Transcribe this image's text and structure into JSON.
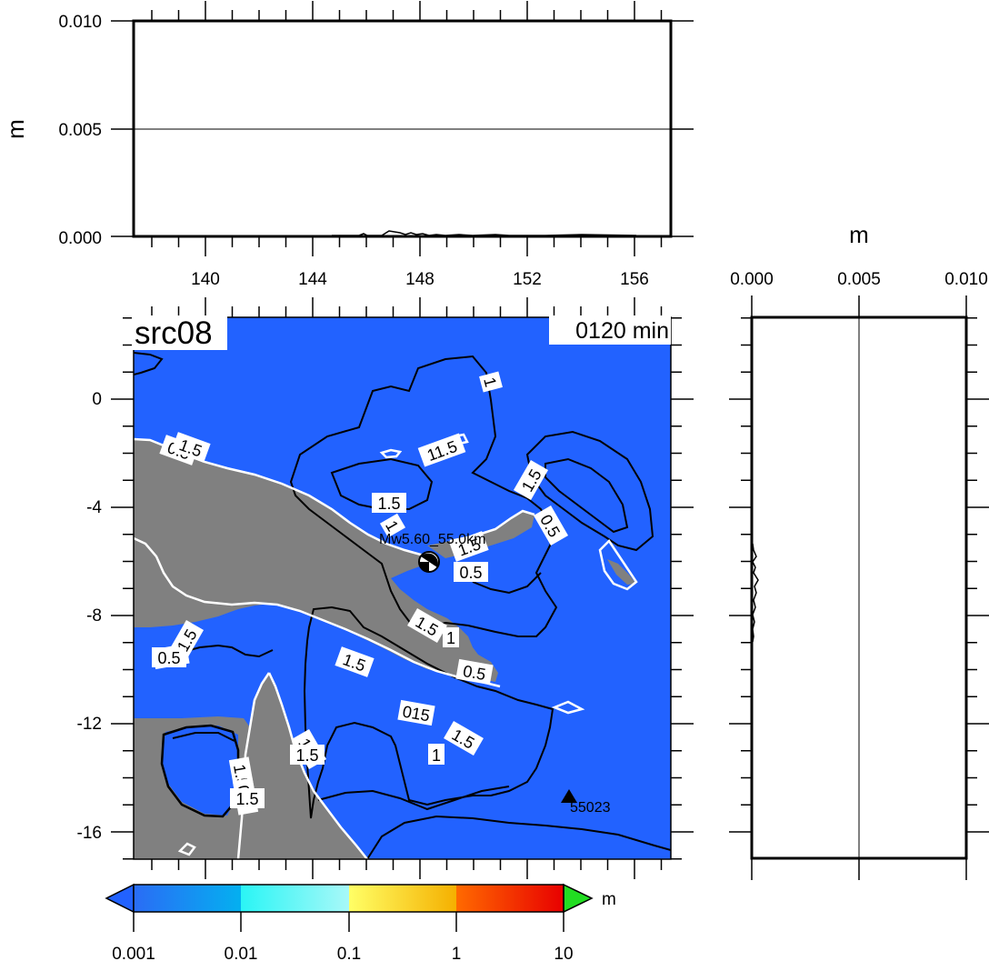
{
  "map": {
    "title": "src08",
    "time_label": "0120 min",
    "x_ticks": [
      "140",
      "144",
      "148",
      "152",
      "156"
    ],
    "y_ticks": [
      "0",
      "-4",
      "-8",
      "-12",
      "-16"
    ],
    "event_label": "Mw5.60_55.0km",
    "station_label": "55023",
    "contour_labels": [
      "0.5",
      "1.5",
      "1",
      "1.5",
      "11.5",
      "1.5",
      "1",
      "0.5",
      "1.5",
      "0.5",
      "1.5",
      "1",
      "1.5",
      "0.5",
      "0.5",
      "1.5",
      "1.5",
      "015",
      "1.5",
      "1",
      "1.5",
      "0.5",
      "0.5",
      "1.5",
      "1.5",
      "1"
    ],
    "colors": {
      "ocean": "#2262ff",
      "land": "#808080"
    }
  },
  "top_profile": {
    "ylabel": "m",
    "y_ticks": [
      "0.010",
      "0.005",
      "0.000"
    ]
  },
  "side_profile": {
    "xlabel": "m",
    "x_ticks": [
      "0.000",
      "0.005",
      "0.010"
    ]
  },
  "colorbar": {
    "unit": "m",
    "tick_labels": [
      "0.001",
      "0.01",
      "0.1",
      "1",
      "10"
    ],
    "colors": [
      "#2a6cf5",
      "#17b5f0",
      "#36fbf8",
      "#ffff66",
      "#f5b800",
      "#ff5a00",
      "#e70000"
    ],
    "under_color": "#2262ff",
    "over_color": "#22dd22"
  }
}
